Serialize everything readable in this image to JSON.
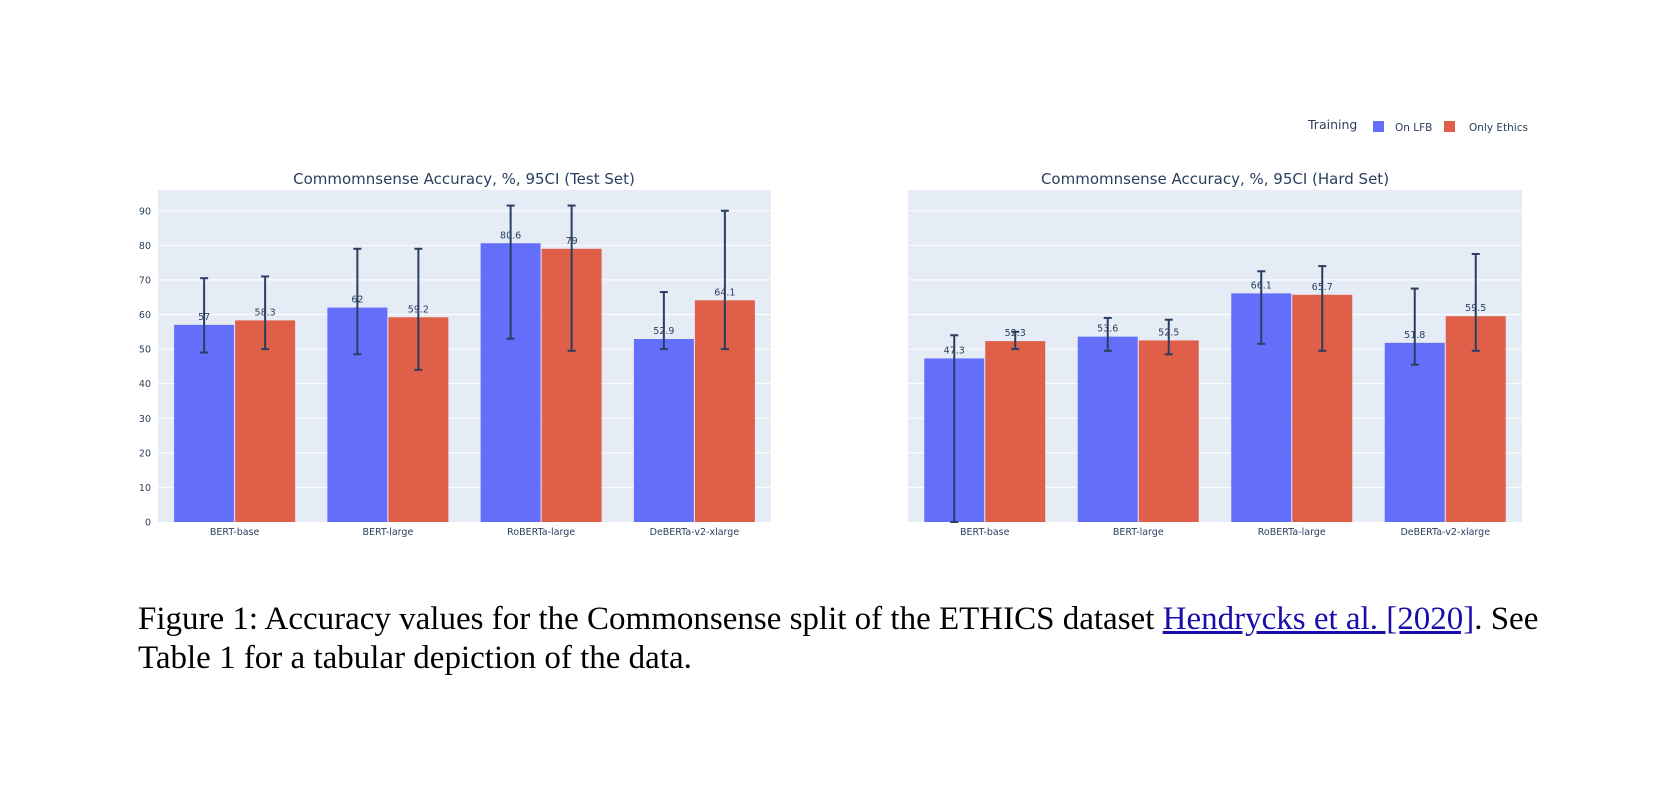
{
  "legend": {
    "title": "Training",
    "items": [
      {
        "label": "On LFB",
        "color": "#636efa"
      },
      {
        "label": "Only Ethics",
        "color": "#e05f49"
      }
    ]
  },
  "chart_data": [
    {
      "type": "bar",
      "title": "Commomnsense Accuracy, %, 95CI (Test Set)",
      "xlabel": "",
      "ylabel": "",
      "ylim": [
        0,
        96
      ],
      "yticks": [
        "0",
        "10",
        "20",
        "30",
        "40",
        "50",
        "60",
        "70",
        "80",
        "90"
      ],
      "grid": true,
      "legend_position": "top-right",
      "categories": [
        "BERT-base",
        "BERT-large",
        "RoBERTa-large",
        "DeBERTa-v2-xlarge"
      ],
      "series": [
        {
          "name": "On LFB",
          "color": "#636efa",
          "values": [
            57,
            62,
            80.6,
            52.9
          ],
          "labels": [
            "57",
            "62",
            "80.6",
            "52.9"
          ],
          "error_low": [
            49,
            48.5,
            53,
            50
          ],
          "error_high": [
            70.5,
            79,
            91.5,
            66.5
          ]
        },
        {
          "name": "Only Ethics",
          "color": "#e05f49",
          "values": [
            58.3,
            59.2,
            79,
            64.1
          ],
          "labels": [
            "58.3",
            "59.2",
            "79",
            "64.1"
          ],
          "error_low": [
            50,
            44,
            49.5,
            50
          ],
          "error_high": [
            71,
            79,
            91.5,
            90
          ]
        }
      ]
    },
    {
      "type": "bar",
      "title": "Commomnsense Accuracy, %, 95CI (Hard Set)",
      "xlabel": "",
      "ylabel": "",
      "ylim": [
        0,
        96
      ],
      "yticks": [],
      "grid": true,
      "legend_position": "top-right",
      "categories": [
        "BERT-base",
        "BERT-large",
        "RoBERTa-large",
        "DeBERTa-v2-xlarge"
      ],
      "series": [
        {
          "name": "On LFB",
          "color": "#636efa",
          "values": [
            47.3,
            53.6,
            66.1,
            51.8
          ],
          "labels": [
            "47.3",
            "53.6",
            "66.1",
            "51.8"
          ],
          "error_low": [
            0,
            49.5,
            51.5,
            45.5
          ],
          "error_high": [
            54,
            59,
            72.5,
            67.5
          ]
        },
        {
          "name": "Only Ethics",
          "color": "#e05f49",
          "values": [
            52.3,
            52.5,
            65.7,
            59.5
          ],
          "labels": [
            "52.3",
            "52.5",
            "65.7",
            "59.5"
          ],
          "error_low": [
            50,
            48.5,
            49.5,
            49.5
          ],
          "error_high": [
            55,
            58.5,
            74,
            77.5
          ]
        }
      ]
    }
  ],
  "caption": {
    "prefix": "Figure 1: Accuracy values for the Commonsense split of the ETHICS dataset ",
    "link": "Hendrycks et al. [2020]",
    "suffix": ". See Table 1 for a tabular depiction of the data."
  }
}
